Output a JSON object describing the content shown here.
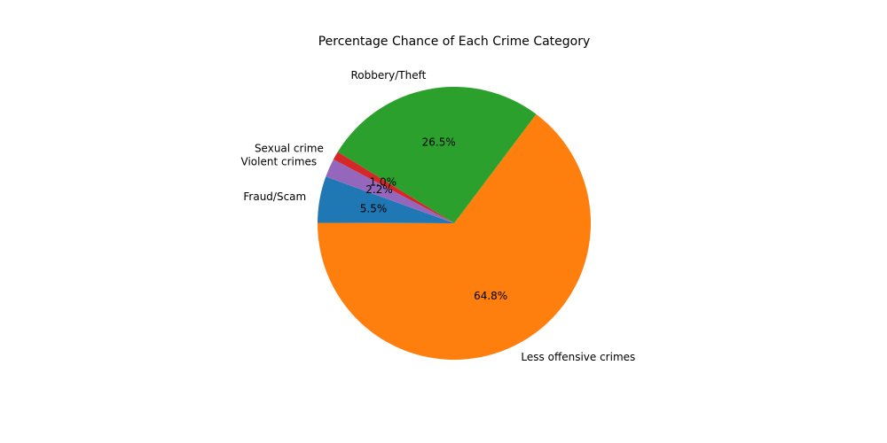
{
  "chart_data": {
    "type": "pie",
    "title": "Percentage Chance of Each Crime Category",
    "start_angle_deg": 160,
    "direction": "counterclockwise",
    "slices": [
      {
        "label": "Fraud/Scam",
        "value": 5.5,
        "pct_label": "5.5%",
        "color": "#1f77b4"
      },
      {
        "label": "Less offensive crimes",
        "value": 64.8,
        "pct_label": "64.8%",
        "color": "#ff7f0e"
      },
      {
        "label": "Robbery/Theft",
        "value": 26.5,
        "pct_label": "26.5%",
        "color": "#2ca02c"
      },
      {
        "label": "Sexual crime",
        "value": 1.0,
        "pct_label": "1.0%",
        "color": "#d62728"
      },
      {
        "label": "Violent crimes",
        "value": 2.2,
        "pct_label": "2.2%",
        "color": "#9467bd"
      }
    ]
  }
}
